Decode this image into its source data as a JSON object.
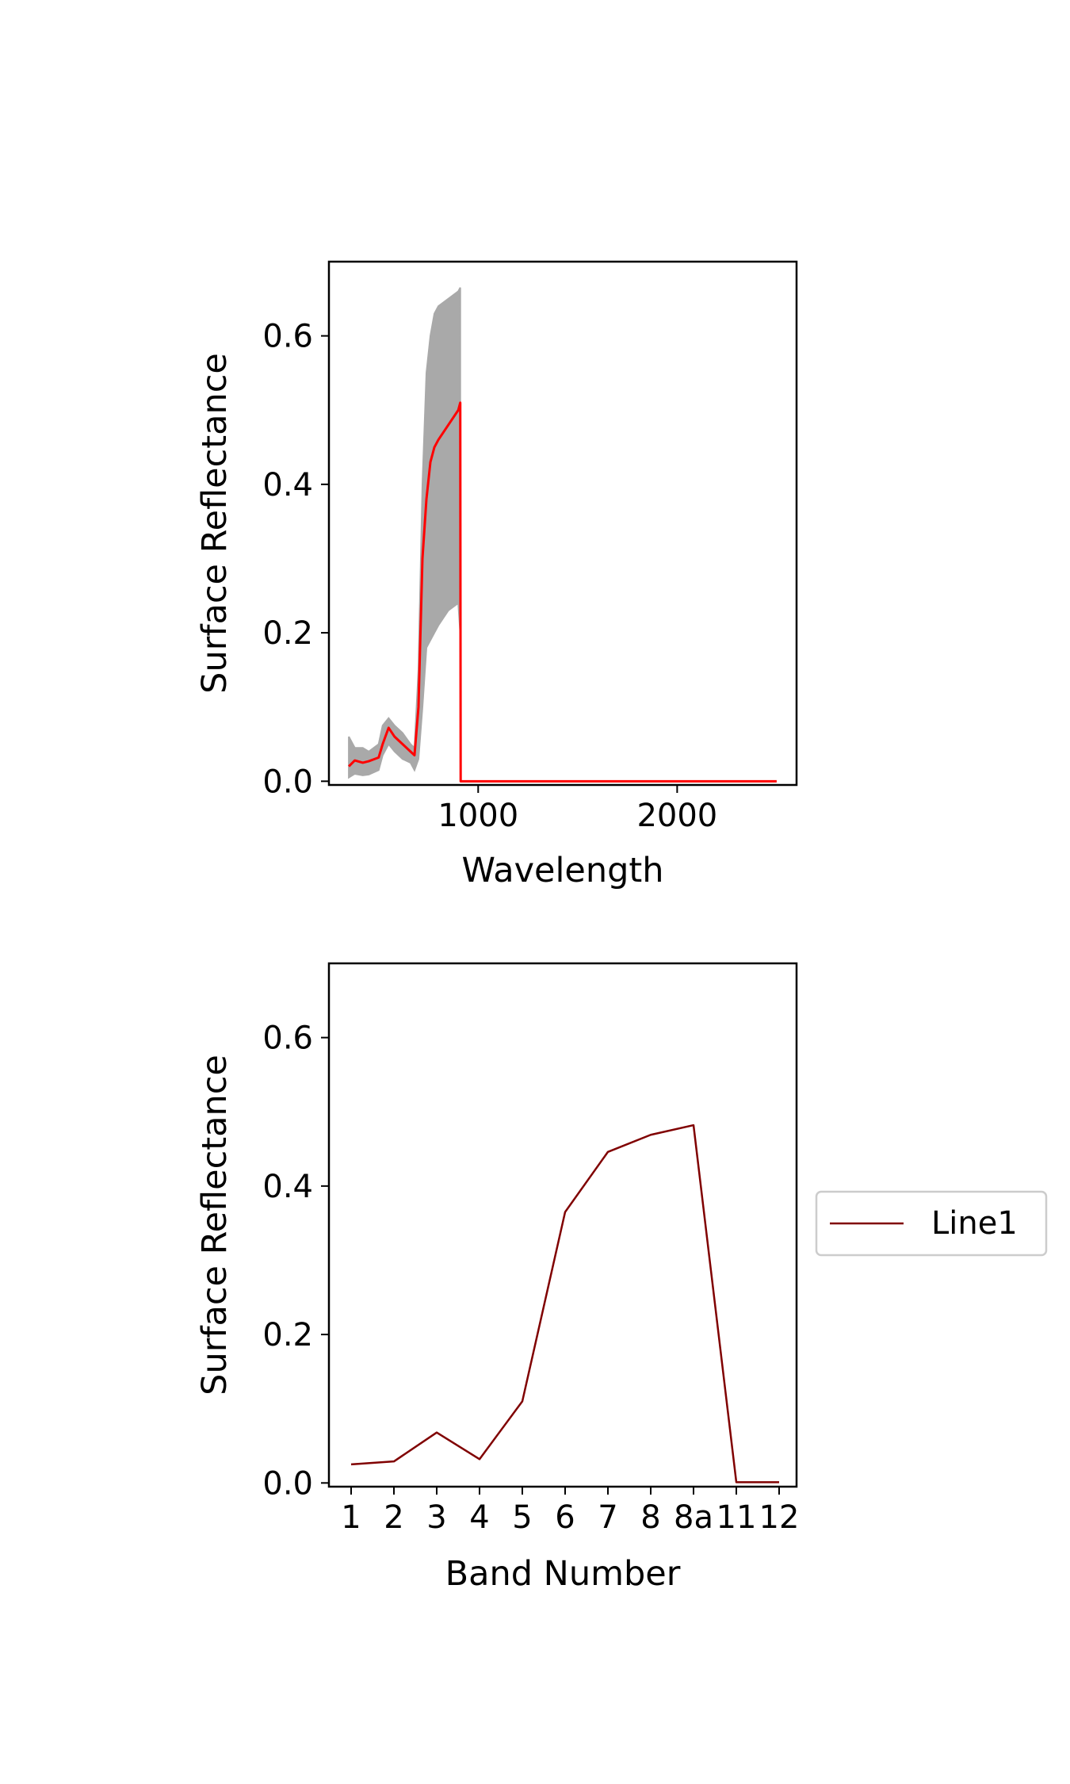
{
  "colors": {
    "envelope": "#a9a9a9",
    "mean_line": "#ff0000",
    "band_line": "#800000",
    "axes": "#000000",
    "legend_border": "#cccccc"
  },
  "chart_data": [
    {
      "type": "area",
      "title": "",
      "xlabel": "Wavelength",
      "ylabel": "Surface Reflectance",
      "xlim": [
        250,
        2600
      ],
      "ylim": [
        -0.005,
        0.7
      ],
      "xticks": [
        1000,
        2000
      ],
      "xtick_labels": [
        "1000",
        "2000"
      ],
      "yticks": [
        0.0,
        0.2,
        0.4,
        0.6
      ],
      "ytick_labels": [
        "0.0",
        "0.2",
        "0.4",
        "0.6"
      ],
      "grid": false,
      "series": [
        {
          "role": "envelope",
          "x": [
            350,
            380,
            420,
            450,
            500,
            520,
            550,
            580,
            620,
            660,
            680,
            700,
            720,
            740,
            760,
            780,
            800,
            850,
            900,
            910
          ],
          "y_min": [
            0.005,
            0.01,
            0.008,
            0.009,
            0.015,
            0.035,
            0.05,
            0.04,
            0.03,
            0.025,
            0.015,
            0.03,
            0.1,
            0.18,
            0.19,
            0.2,
            0.21,
            0.23,
            0.24,
            0.2
          ],
          "y_max": [
            0.06,
            0.045,
            0.045,
            0.04,
            0.05,
            0.075,
            0.085,
            0.075,
            0.065,
            0.05,
            0.045,
            0.15,
            0.4,
            0.55,
            0.6,
            0.63,
            0.64,
            0.65,
            0.66,
            0.665
          ]
        },
        {
          "role": "mean",
          "x": [
            350,
            380,
            420,
            450,
            480,
            500,
            520,
            550,
            580,
            620,
            660,
            680,
            700,
            720,
            740,
            760,
            780,
            800,
            850,
            900,
            910,
            912,
            2500
          ],
          "y": [
            0.02,
            0.028,
            0.025,
            0.027,
            0.03,
            0.032,
            0.05,
            0.072,
            0.06,
            0.05,
            0.04,
            0.035,
            0.1,
            0.3,
            0.38,
            0.43,
            0.45,
            0.46,
            0.48,
            0.5,
            0.51,
            0.0,
            0.0
          ]
        }
      ]
    },
    {
      "type": "line",
      "title": "",
      "xlabel": "Band Number",
      "ylabel": "Surface Reflectance",
      "ylim": [
        -0.005,
        0.7
      ],
      "yticks": [
        0.0,
        0.2,
        0.4,
        0.6
      ],
      "ytick_labels": [
        "0.0",
        "0.2",
        "0.4",
        "0.6"
      ],
      "grid": false,
      "categories": [
        "1",
        "2",
        "3",
        "4",
        "5",
        "6",
        "7",
        "8",
        "8a",
        "11",
        "12"
      ],
      "series": [
        {
          "name": "Line1",
          "values": [
            0.025,
            0.029,
            0.068,
            0.032,
            0.11,
            0.365,
            0.446,
            0.469,
            0.482,
            0.001,
            0.001
          ]
        }
      ],
      "legend": {
        "placement": "outside-right",
        "entries": [
          "Line1"
        ]
      }
    }
  ]
}
